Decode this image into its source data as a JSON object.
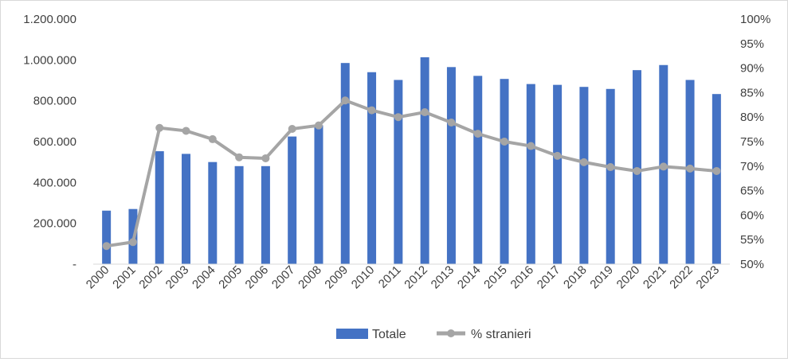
{
  "chart_data": {
    "type": "bar+line",
    "categories": [
      "2000",
      "2001",
      "2002",
      "2003",
      "2004",
      "2005",
      "2006",
      "2007",
      "2008",
      "2009",
      "2010",
      "2011",
      "2012",
      "2013",
      "2014",
      "2015",
      "2016",
      "2017",
      "2018",
      "2019",
      "2020",
      "2021",
      "2022",
      "2023"
    ],
    "series": [
      {
        "name": "Totale",
        "type": "bar",
        "axis": "left",
        "color": "#4472C4",
        "values": [
          262000,
          270000,
          553000,
          540000,
          500000,
          480000,
          480000,
          625000,
          680000,
          985000,
          940000,
          902000,
          1013000,
          965000,
          922000,
          907000,
          882000,
          878000,
          868000,
          858000,
          950000,
          975000,
          902000,
          833000
        ]
      },
      {
        "name": "% stranieri",
        "type": "line",
        "axis": "right",
        "color": "#A5A5A5",
        "values": [
          53.7,
          54.5,
          77.8,
          77.2,
          75.5,
          71.8,
          71.6,
          77.6,
          78.3,
          83.4,
          81.4,
          80.0,
          81.0,
          78.9,
          76.6,
          75.0,
          74.1,
          72.1,
          70.8,
          69.8,
          69.0,
          69.9,
          69.5,
          69.0
        ]
      }
    ],
    "y_left": {
      "min": 0,
      "max": 1200000,
      "ticks": [
        0,
        200000,
        400000,
        600000,
        800000,
        1000000,
        1200000
      ],
      "tick_labels": [
        "-",
        "200.000",
        "400.000",
        "600.000",
        "800.000",
        "1.000.000",
        "1.200.000"
      ]
    },
    "y_right": {
      "min": 50,
      "max": 100,
      "ticks": [
        50,
        55,
        60,
        65,
        70,
        75,
        80,
        85,
        90,
        95,
        100
      ],
      "tick_labels": [
        "50%",
        "55%",
        "60%",
        "65%",
        "70%",
        "75%",
        "80%",
        "85%",
        "90%",
        "95%",
        "100%"
      ]
    },
    "legend": {
      "position": "bottom",
      "items": [
        "Totale",
        "% stranieri"
      ]
    },
    "grid": false
  }
}
